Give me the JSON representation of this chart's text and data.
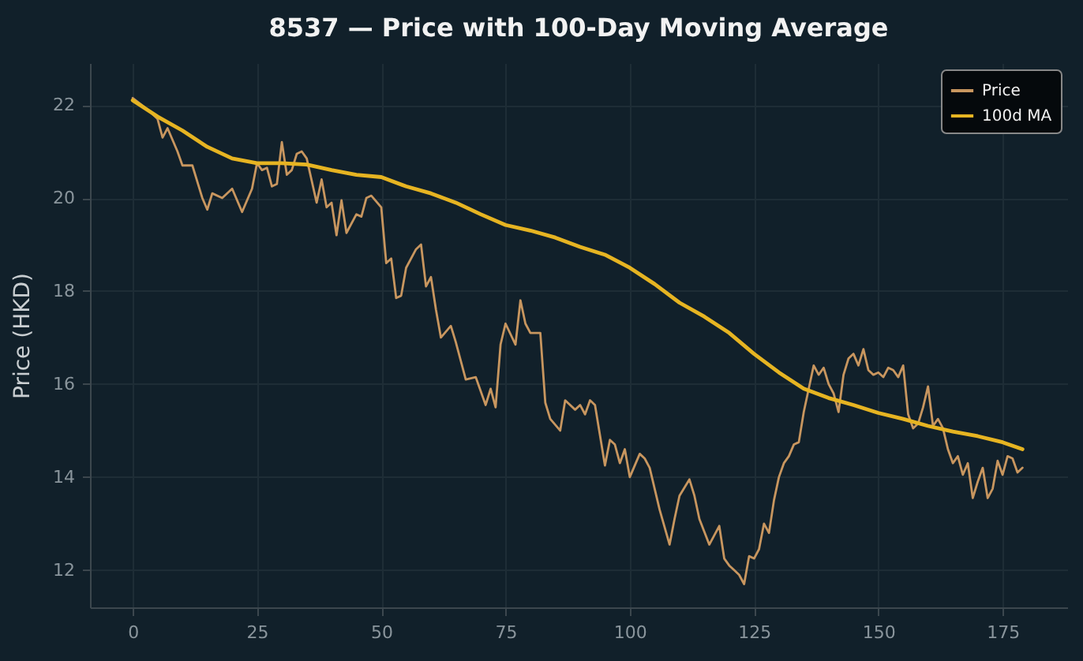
{
  "chart_data": {
    "type": "line",
    "title": "8537 — Price with 100-Day Moving Average",
    "ylabel": "Price (HKD)",
    "xlim": [
      -8.6,
      188
    ],
    "xticks": [
      0,
      25,
      50,
      75,
      100,
      125,
      150,
      175
    ],
    "ylim": [
      11.2,
      22.9
    ],
    "yticks": [
      12,
      14,
      16,
      18,
      20,
      22
    ],
    "grid": true,
    "legend": "top right",
    "marker": "none",
    "series": [
      {
        "name": "Price",
        "color": "#c8965f",
        "x": [
          0,
          3,
          5,
          6,
          7,
          9,
          10,
          12,
          14,
          15,
          16,
          18,
          20,
          22,
          24,
          25,
          26,
          27,
          28,
          29,
          30,
          31,
          32,
          33,
          34,
          35,
          37,
          38,
          39,
          40,
          41,
          42,
          43,
          45,
          46,
          47,
          48,
          50,
          51,
          52,
          53,
          54,
          55,
          57,
          58,
          59,
          60,
          61,
          62,
          64,
          65,
          67,
          69,
          71,
          72,
          73,
          74,
          75,
          77,
          78,
          79,
          80,
          82,
          83,
          84,
          86,
          87,
          89,
          90,
          91,
          92,
          93,
          95,
          96,
          97,
          98,
          99,
          100,
          102,
          103,
          104,
          106,
          108,
          109,
          110,
          112,
          113,
          114,
          116,
          118,
          119,
          120,
          121,
          122,
          123,
          124,
          125,
          126,
          127,
          128,
          129,
          130,
          131,
          132,
          133,
          134,
          135,
          136,
          137,
          138,
          139,
          140,
          141,
          142,
          143,
          144,
          145,
          146,
          147,
          148,
          149,
          150,
          151,
          152,
          153,
          154,
          155,
          156,
          157,
          158,
          159,
          160,
          161,
          162,
          163,
          164,
          165,
          166,
          167,
          168,
          169,
          170,
          171,
          172,
          173,
          174,
          175,
          176,
          177,
          178,
          179
        ],
        "values": [
          22.15,
          21.9,
          21.7,
          21.3,
          21.5,
          21.0,
          20.7,
          20.7,
          20.0,
          19.75,
          20.1,
          20.0,
          20.2,
          19.7,
          20.2,
          20.75,
          20.6,
          20.65,
          20.25,
          20.3,
          21.2,
          20.5,
          20.6,
          20.95,
          21.0,
          20.85,
          19.9,
          20.4,
          19.8,
          19.9,
          19.2,
          19.95,
          19.25,
          19.65,
          19.6,
          20.0,
          20.05,
          19.8,
          18.6,
          18.7,
          17.85,
          17.9,
          18.5,
          18.9,
          19.0,
          18.1,
          18.3,
          17.6,
          17.0,
          17.25,
          16.9,
          16.1,
          16.15,
          15.55,
          15.9,
          15.5,
          16.85,
          17.3,
          16.85,
          17.8,
          17.3,
          17.1,
          17.1,
          15.6,
          15.25,
          15.0,
          15.65,
          15.45,
          15.55,
          15.35,
          15.65,
          15.55,
          14.25,
          14.8,
          14.7,
          14.3,
          14.6,
          14.0,
          14.5,
          14.4,
          14.2,
          13.3,
          12.55,
          13.1,
          13.6,
          13.95,
          13.6,
          13.1,
          12.55,
          12.95,
          12.25,
          12.1,
          12.0,
          11.9,
          11.7,
          12.3,
          12.25,
          12.45,
          13.0,
          12.8,
          13.5,
          14.0,
          14.3,
          14.45,
          14.7,
          14.75,
          15.4,
          15.9,
          16.4,
          16.2,
          16.35,
          16.0,
          15.8,
          15.4,
          16.2,
          16.55,
          16.65,
          16.4,
          16.75,
          16.3,
          16.2,
          16.25,
          16.15,
          16.35,
          16.3,
          16.15,
          16.4,
          15.35,
          15.05,
          15.15,
          15.5,
          15.95,
          15.1,
          15.25,
          15.05,
          14.6,
          14.3,
          14.45,
          14.05,
          14.3,
          13.55,
          13.9,
          14.2,
          13.55,
          13.75,
          14.35,
          14.05,
          14.45,
          14.4,
          14.1,
          14.2
        ]
      },
      {
        "name": "100d MA",
        "color": "#e6b422",
        "x": [
          0,
          5,
          10,
          15,
          20,
          25,
          30,
          35,
          40,
          45,
          50,
          55,
          60,
          65,
          70,
          75,
          80,
          85,
          90,
          95,
          100,
          105,
          110,
          115,
          120,
          125,
          130,
          135,
          140,
          145,
          150,
          155,
          160,
          165,
          170,
          175,
          179
        ],
        "values": [
          22.1,
          21.75,
          21.45,
          21.1,
          20.85,
          20.75,
          20.75,
          20.72,
          20.6,
          20.5,
          20.45,
          20.25,
          20.1,
          19.9,
          19.65,
          19.42,
          19.3,
          19.15,
          18.95,
          18.78,
          18.5,
          18.15,
          17.75,
          17.45,
          17.1,
          16.65,
          16.25,
          15.9,
          15.7,
          15.55,
          15.38,
          15.25,
          15.1,
          14.98,
          14.88,
          14.75,
          14.6
        ]
      }
    ]
  }
}
